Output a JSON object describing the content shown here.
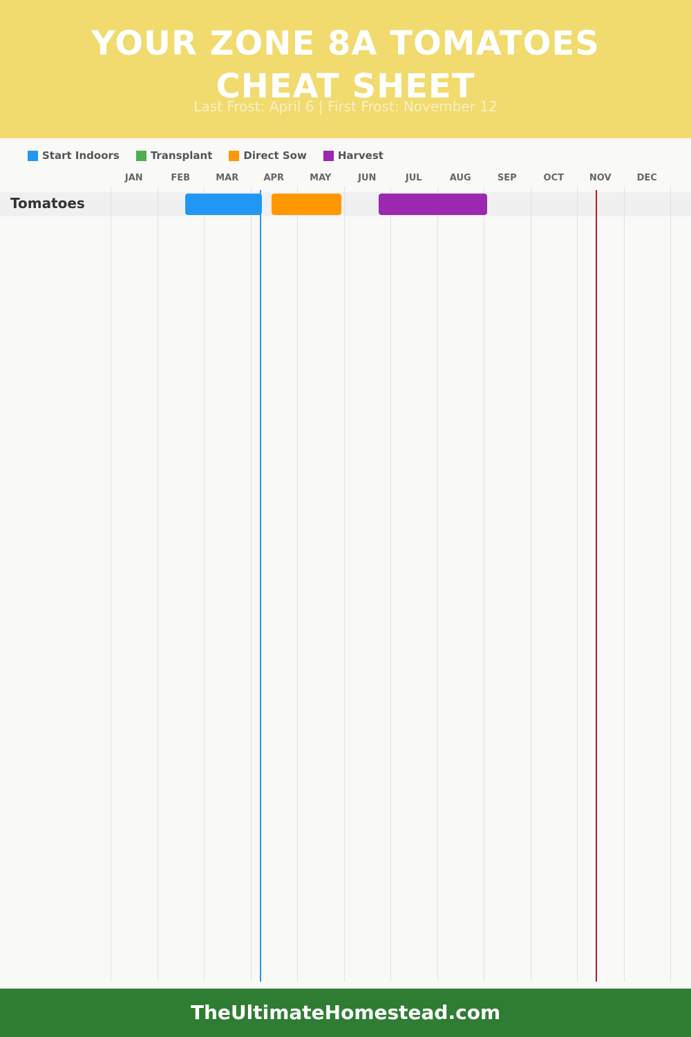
{
  "header": {
    "title_line1": "YOUR ZONE 8A TOMATOES",
    "title_line2": "CHEAT SHEET",
    "subtitle": "Last Frost: April 6 | First Frost: November 12"
  },
  "legend": [
    {
      "label": "Start Indoors",
      "color": "#2196f3"
    },
    {
      "label": "Transplant",
      "color": "#4caf50"
    },
    {
      "label": "Direct Sow",
      "color": "#ff9800"
    },
    {
      "label": "Harvest",
      "color": "#9c27b0"
    }
  ],
  "footer": {
    "text": "TheUltimateHomestead.com"
  },
  "chart_data": {
    "type": "gantt",
    "months": [
      "JAN",
      "FEB",
      "MAR",
      "APR",
      "MAY",
      "JUN",
      "JUL",
      "AUG",
      "SEP",
      "OCT",
      "NOV",
      "DEC"
    ],
    "rows": [
      {
        "label": "Tomatoes",
        "bars": [
          {
            "activity": "Start Indoors",
            "start_month": 2.6,
            "end_month": 4.25,
            "color": "#2196f3"
          },
          {
            "activity": "Direct Sow",
            "start_month": 4.45,
            "end_month": 5.95,
            "color": "#ff9800"
          },
          {
            "activity": "Harvest",
            "start_month": 6.75,
            "end_month": 9.08,
            "color": "#9c27b0"
          }
        ]
      }
    ],
    "frost_lines": [
      {
        "name": "Last Frost",
        "month": 4.2,
        "color": "#2196f3"
      },
      {
        "name": "First Frost",
        "month": 11.4,
        "color": "#b71c1c"
      }
    ]
  }
}
